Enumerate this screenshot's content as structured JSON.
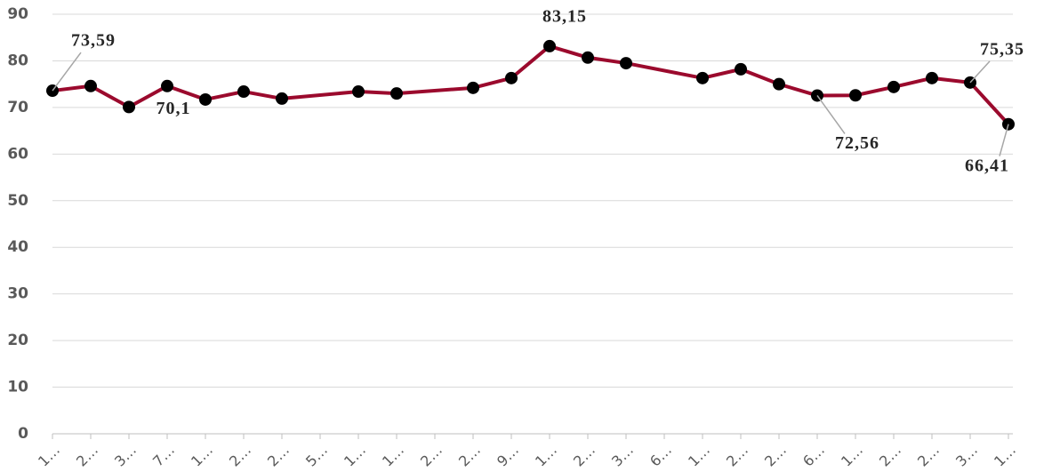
{
  "chart_data": {
    "type": "line",
    "categories": [
      "1…",
      "2…",
      "3…",
      "7…",
      "1…",
      "2…",
      "2…",
      "5…",
      "1…",
      "1…",
      "2…",
      "2…",
      "9…",
      "1…",
      "2…",
      "3…",
      "6…",
      "1…",
      "2…",
      "2…",
      "6…",
      "1…",
      "2…",
      "2…",
      "3…",
      "1…"
    ],
    "series": [
      {
        "name": null,
        "color": "#9b0a2d",
        "values": [
          73.59,
          74.6,
          70.1,
          74.6,
          71.7,
          73.4,
          71.9,
          null,
          73.4,
          73.0,
          null,
          74.2,
          76.3,
          83.15,
          80.7,
          79.5,
          null,
          76.3,
          78.2,
          75.0,
          72.56,
          72.6,
          74.4,
          76.3,
          75.35,
          66.41
        ],
        "value_labels": [
          "73,59",
          null,
          "70,1",
          null,
          null,
          null,
          null,
          null,
          null,
          null,
          null,
          null,
          null,
          "83,15",
          null,
          null,
          null,
          null,
          null,
          null,
          "72,56",
          null,
          null,
          null,
          "75,35",
          "66,41"
        ]
      }
    ],
    "marker_color": "#000000",
    "connect_gaps": true,
    "ylim": [
      0,
      90
    ],
    "yticks": [
      0,
      10,
      20,
      30,
      40,
      50,
      60,
      70,
      80,
      90
    ],
    "grid": true
  }
}
